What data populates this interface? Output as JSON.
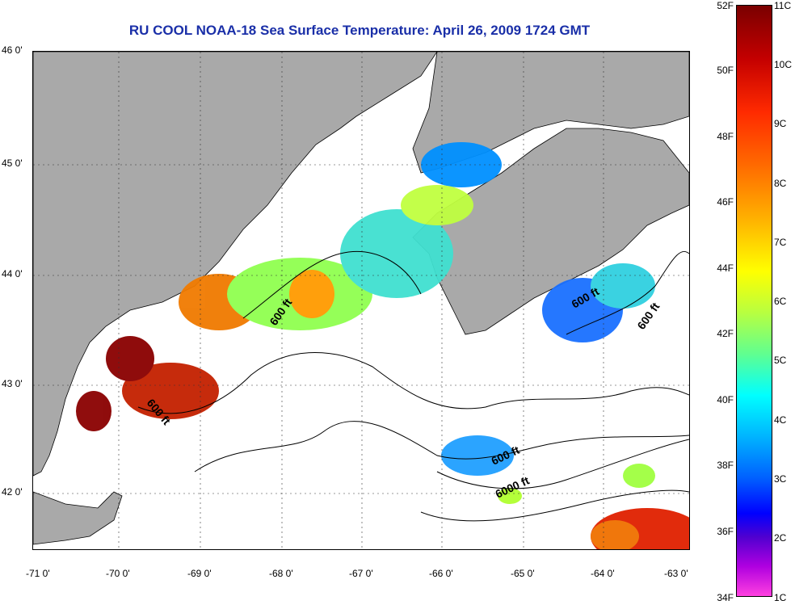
{
  "title": "RU COOL  NOAA-18  Sea Surface Temperature:  April 26, 2009 1724 GMT",
  "lat_ticks": [
    "46 0'",
    "45 0'",
    "44 0'",
    "43 0'",
    "42 0'"
  ],
  "lon_ticks": [
    "-71 0'",
    "-70 0'",
    "-69 0'",
    "-68 0'",
    "-67 0'",
    "-66 0'",
    "-65 0'",
    "-64 0'",
    "-63 0'"
  ],
  "colorbar": {
    "fahrenheit": [
      "52F",
      "50F",
      "48F",
      "46F",
      "44F",
      "42F",
      "40F",
      "38F",
      "36F",
      "34F"
    ],
    "celsius": [
      "11C",
      "10C",
      "9C",
      "8C",
      "7C",
      "6C",
      "5C",
      "4C",
      "3C",
      "2C",
      "1C"
    ]
  },
  "contour_labels": [
    "600 ft",
    "600 ft",
    "600 ft",
    "600 ft",
    "600 ft",
    "6000 ft"
  ],
  "colors": {
    "land": "#a9a9a9",
    "title": "#1a2fa8",
    "ocean_nodata": "#ffffff"
  }
}
